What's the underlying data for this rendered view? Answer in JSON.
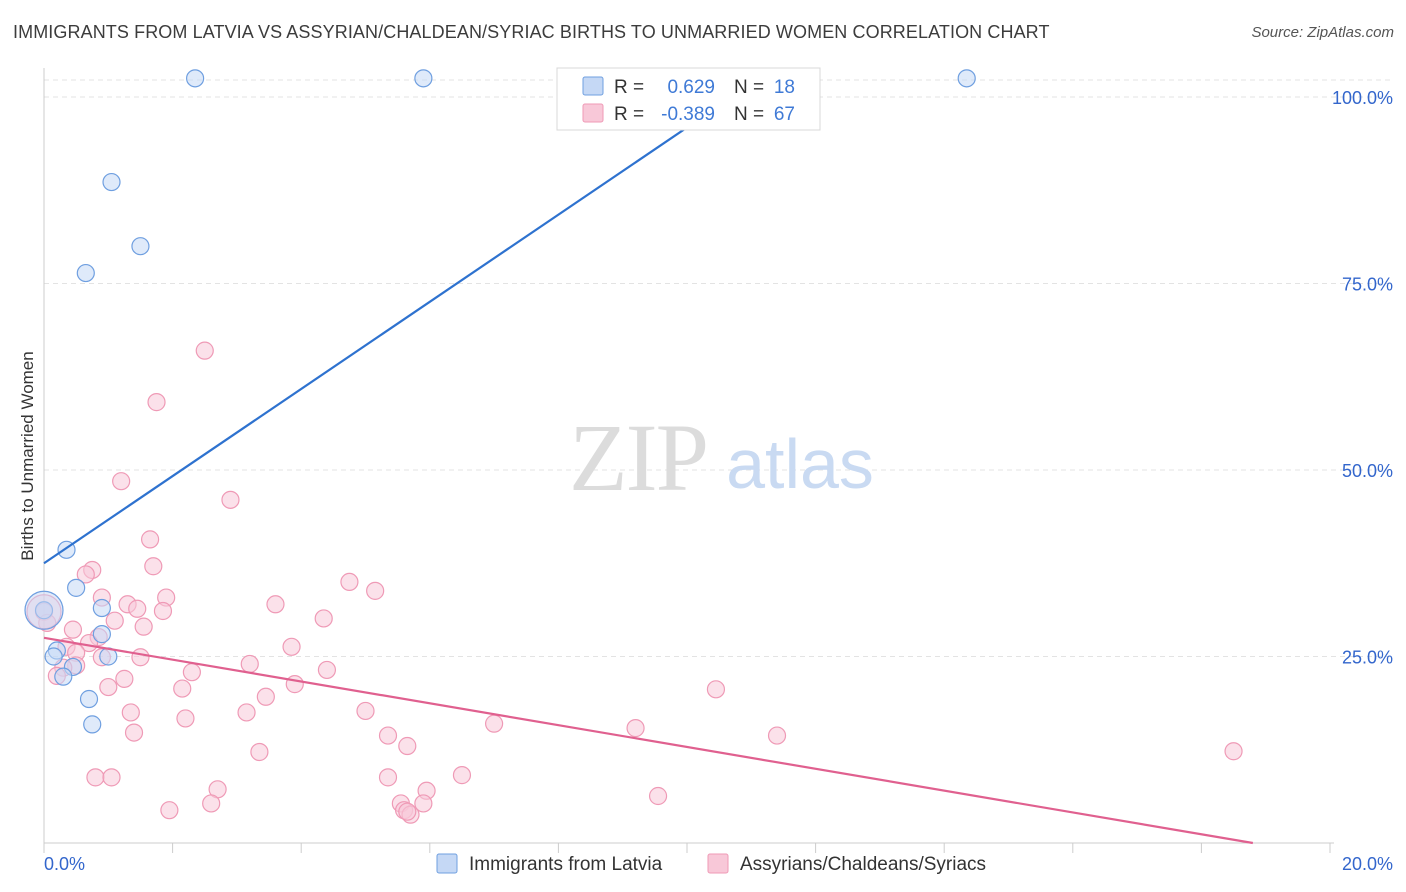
{
  "title": "IMMIGRANTS FROM LATVIA VS ASSYRIAN/CHALDEAN/SYRIAC BIRTHS TO UNMARRIED WOMEN CORRELATION CHART",
  "source": "Source: ZipAtlas.com",
  "watermark": {
    "zip": "ZIP",
    "atlas": "atlas"
  },
  "chart_data": {
    "type": "scatter",
    "xlabel": "",
    "ylabel": "Births to Unmarried Women",
    "xlim": [
      0,
      20
    ],
    "ylim": [
      0,
      100
    ],
    "x_tick_labels": [
      "0.0%",
      "20.0%"
    ],
    "y_ticks": [
      25,
      50,
      75,
      100
    ],
    "y_tick_labels": [
      "25.0%",
      "50.0%",
      "75.0%",
      "100.0%"
    ],
    "grid": true,
    "legend": {
      "position": "top-center",
      "r_label": "R =",
      "n_label": "N =",
      "rows": [
        {
          "r": "0.629",
          "n": "18"
        },
        {
          "r": "-0.389",
          "n": "67"
        }
      ]
    },
    "series": [
      {
        "name": "Immigrants from Latvia",
        "color": "#6f9fe0",
        "fill": "#c5d8f5",
        "line_color": "#2e72cf",
        "trend": {
          "x": [
            0,
            10.7
          ],
          "y": [
            37.5,
            100
          ]
        },
        "points": [
          {
            "x": 2.35,
            "y": 102.5
          },
          {
            "x": 5.9,
            "y": 102.5
          },
          {
            "x": 14.35,
            "y": 102.5
          },
          {
            "x": 1.05,
            "y": 88.6
          },
          {
            "x": 1.5,
            "y": 80.0
          },
          {
            "x": 0.65,
            "y": 76.4
          },
          {
            "x": 0.35,
            "y": 39.3
          },
          {
            "x": 0.5,
            "y": 34.2
          },
          {
            "x": 0.9,
            "y": 31.5
          },
          {
            "x": 0.0,
            "y": 31.2
          },
          {
            "x": 0.9,
            "y": 28.0
          },
          {
            "x": 0.2,
            "y": 25.8
          },
          {
            "x": 0.15,
            "y": 25.0
          },
          {
            "x": 1.0,
            "y": 25.0
          },
          {
            "x": 0.45,
            "y": 23.6
          },
          {
            "x": 0.3,
            "y": 22.3
          },
          {
            "x": 0.7,
            "y": 19.3
          },
          {
            "x": 0.75,
            "y": 15.9
          }
        ]
      },
      {
        "name": "Assyrians/Chaldeans/Syriacs",
        "color": "#ef9ab6",
        "fill": "#f8c8d8",
        "line_color": "#e0608f",
        "trend": {
          "x": [
            0,
            18.8
          ],
          "y": [
            27.5,
            0
          ]
        },
        "points": [
          {
            "x": 2.5,
            "y": 66.0
          },
          {
            "x": 1.75,
            "y": 59.1
          },
          {
            "x": 1.2,
            "y": 48.5
          },
          {
            "x": 2.9,
            "y": 46.0
          },
          {
            "x": 1.65,
            "y": 40.7
          },
          {
            "x": 1.7,
            "y": 37.1
          },
          {
            "x": 0.75,
            "y": 36.6
          },
          {
            "x": 0.65,
            "y": 36.0
          },
          {
            "x": 4.75,
            "y": 35.0
          },
          {
            "x": 5.15,
            "y": 33.8
          },
          {
            "x": 1.9,
            "y": 32.9
          },
          {
            "x": 0.9,
            "y": 32.9
          },
          {
            "x": 1.3,
            "y": 32.0
          },
          {
            "x": 3.6,
            "y": 32.0
          },
          {
            "x": 1.45,
            "y": 31.4
          },
          {
            "x": 1.85,
            "y": 31.1
          },
          {
            "x": 0.0,
            "y": 31.0
          },
          {
            "x": 4.35,
            "y": 30.1
          },
          {
            "x": 1.1,
            "y": 29.8
          },
          {
            "x": 0.05,
            "y": 29.5
          },
          {
            "x": 1.55,
            "y": 29.0
          },
          {
            "x": 0.45,
            "y": 28.6
          },
          {
            "x": 0.85,
            "y": 27.6
          },
          {
            "x": 0.7,
            "y": 26.8
          },
          {
            "x": 0.35,
            "y": 26.3
          },
          {
            "x": 3.85,
            "y": 26.3
          },
          {
            "x": 0.5,
            "y": 25.5
          },
          {
            "x": 1.5,
            "y": 24.9
          },
          {
            "x": 0.9,
            "y": 24.9
          },
          {
            "x": 0.5,
            "y": 23.8
          },
          {
            "x": 0.3,
            "y": 23.5
          },
          {
            "x": 3.2,
            "y": 24.0
          },
          {
            "x": 4.4,
            "y": 23.2
          },
          {
            "x": 2.3,
            "y": 22.9
          },
          {
            "x": 0.2,
            "y": 22.4
          },
          {
            "x": 1.25,
            "y": 22.0
          },
          {
            "x": 3.9,
            "y": 21.3
          },
          {
            "x": 1.0,
            "y": 20.9
          },
          {
            "x": 2.15,
            "y": 20.7
          },
          {
            "x": 10.45,
            "y": 20.6
          },
          {
            "x": 3.45,
            "y": 19.6
          },
          {
            "x": 5.0,
            "y": 17.7
          },
          {
            "x": 1.35,
            "y": 17.5
          },
          {
            "x": 3.15,
            "y": 17.5
          },
          {
            "x": 2.2,
            "y": 16.7
          },
          {
            "x": 7.0,
            "y": 16.0
          },
          {
            "x": 9.2,
            "y": 15.4
          },
          {
            "x": 1.4,
            "y": 14.8
          },
          {
            "x": 5.35,
            "y": 14.4
          },
          {
            "x": 11.4,
            "y": 14.4
          },
          {
            "x": 5.65,
            "y": 13.0
          },
          {
            "x": 3.35,
            "y": 12.2
          },
          {
            "x": 18.5,
            "y": 12.3
          },
          {
            "x": 6.5,
            "y": 9.1
          },
          {
            "x": 0.8,
            "y": 8.8
          },
          {
            "x": 1.05,
            "y": 8.8
          },
          {
            "x": 5.35,
            "y": 8.8
          },
          {
            "x": 2.7,
            "y": 7.2
          },
          {
            "x": 5.95,
            "y": 7.0
          },
          {
            "x": 9.55,
            "y": 6.3
          },
          {
            "x": 2.6,
            "y": 5.3
          },
          {
            "x": 5.9,
            "y": 5.3
          },
          {
            "x": 5.55,
            "y": 5.3
          },
          {
            "x": 1.95,
            "y": 4.4
          },
          {
            "x": 5.6,
            "y": 4.4
          },
          {
            "x": 5.7,
            "y": 3.8
          },
          {
            "x": 5.65,
            "y": 4.2
          }
        ]
      }
    ]
  },
  "bottom_legend": [
    {
      "label": "Immigrants from Latvia"
    },
    {
      "label": "Assyrians/Chaldeans/Syriacs"
    }
  ]
}
